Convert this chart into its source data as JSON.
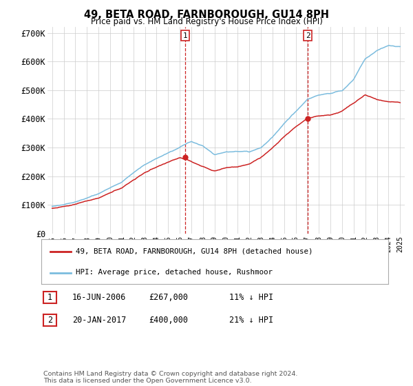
{
  "title": "49, BETA ROAD, FARNBOROUGH, GU14 8PH",
  "subtitle": "Price paid vs. HM Land Registry's House Price Index (HPI)",
  "ylim": [
    0,
    720000
  ],
  "yticks": [
    0,
    100000,
    200000,
    300000,
    400000,
    500000,
    600000,
    700000
  ],
  "ytick_labels": [
    "£0",
    "£100K",
    "£200K",
    "£300K",
    "£400K",
    "£500K",
    "£600K",
    "£700K"
  ],
  "legend_line1": "49, BETA ROAD, FARNBOROUGH, GU14 8PH (detached house)",
  "legend_line2": "HPI: Average price, detached house, Rushmoor",
  "sale1_date": "16-JUN-2006",
  "sale1_price": "£267,000",
  "sale1_hpi": "11% ↓ HPI",
  "sale2_date": "20-JAN-2017",
  "sale2_price": "£400,000",
  "sale2_hpi": "21% ↓ HPI",
  "footnote": "Contains HM Land Registry data © Crown copyright and database right 2024.\nThis data is licensed under the Open Government Licence v3.0.",
  "hpi_color": "#7bbcde",
  "price_color": "#cc2222",
  "sale_marker_color": "#cc2222",
  "vline_color": "#cc2222",
  "grid_color": "#cccccc",
  "bg_color": "#ffffff",
  "sale1_year": 2006.45,
  "sale1_price_val": 267000,
  "sale2_year": 2017.05,
  "sale2_price_val": 400000
}
